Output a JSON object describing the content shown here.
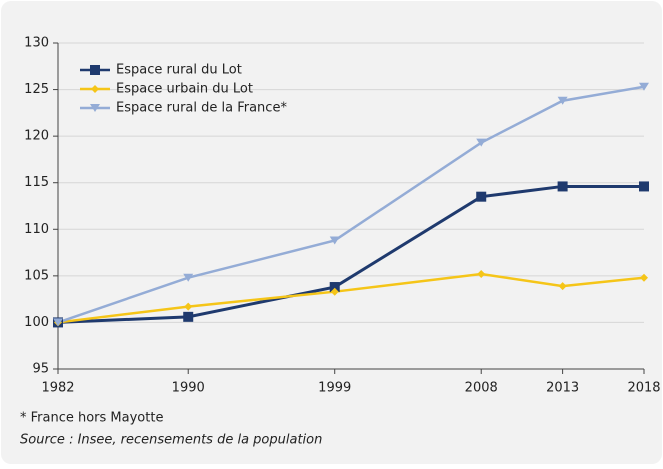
{
  "chart_data": {
    "type": "line",
    "x": [
      1982,
      1990,
      1999,
      2008,
      2013,
      2018
    ],
    "series": [
      {
        "name": "Espace rural du Lot",
        "color": "#1f3a6e",
        "values": [
          100,
          100.6,
          103.8,
          113.5,
          114.6,
          114.6
        ]
      },
      {
        "name": "Espace urbain du Lot",
        "color": "#f5c518",
        "values": [
          100,
          101.7,
          103.3,
          105.2,
          103.9,
          104.8
        ]
      },
      {
        "name": "Espace rural de la France*",
        "color": "#94acd6",
        "values": [
          100,
          104.8,
          108.8,
          119.3,
          123.8,
          125.3
        ]
      }
    ],
    "xlim": [
      1982,
      2018
    ],
    "xticks": [
      1982,
      1990,
      1999,
      2008,
      2013,
      2018
    ],
    "ylim": [
      95,
      130
    ],
    "yticks": [
      95,
      100,
      105,
      110,
      115,
      120,
      125,
      130
    ],
    "grid": true,
    "legend": "upper left",
    "notes": [
      "* France hors Mayotte",
      "Source : Insee, recensements de la population"
    ]
  }
}
